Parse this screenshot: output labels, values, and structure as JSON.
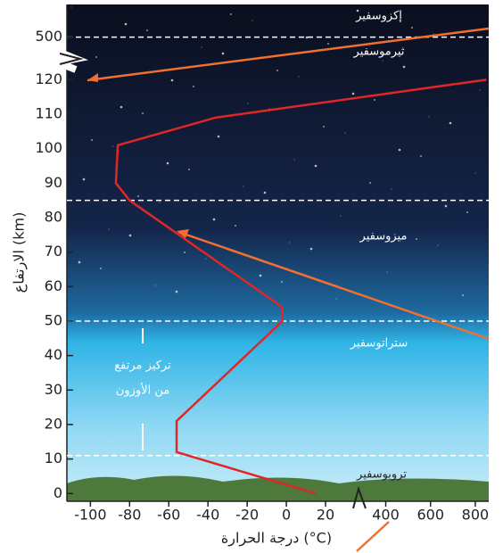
{
  "chart_data": {
    "type": "line",
    "x_label": "درجة الحرارة (°C)",
    "y_label": "الارتفاع (km)",
    "x": [
      15,
      -56,
      -56,
      -2,
      -2,
      -80,
      -87,
      -86,
      -36,
      850
    ],
    "values": [
      0,
      12,
      21,
      50,
      54,
      85,
      90,
      101,
      109,
      120
    ],
    "color": "#e02626",
    "ylim": [
      -2,
      520
    ],
    "ybreak": [
      125,
      490
    ],
    "yticks": [
      0,
      10,
      20,
      30,
      40,
      50,
      60,
      70,
      80,
      90,
      100,
      110,
      120,
      500
    ],
    "xlim": [
      -112,
      860
    ],
    "xbreak": [
      30,
      370
    ],
    "xticks": [
      -100,
      -80,
      -60,
      -40,
      -20,
      0,
      20,
      400,
      600,
      800
    ],
    "boundaries": [
      11,
      50,
      85,
      500
    ],
    "annotations": [
      "إكزوسفير",
      "ثيرموسفير",
      "ميزوسفير",
      "ستراتوسفير",
      "تروبوسفير",
      "تركيز مرتفع",
      "من الأوزون"
    ]
  }
}
